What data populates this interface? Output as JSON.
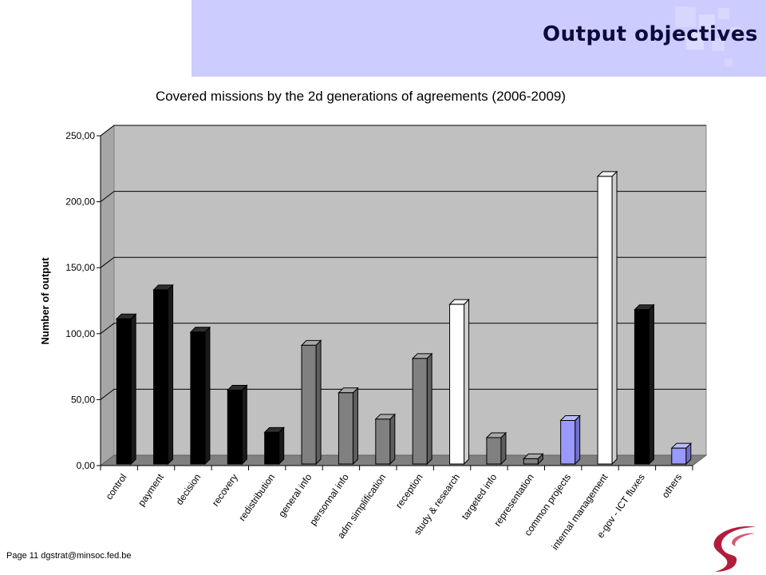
{
  "slide": {
    "title": "Output objectives",
    "footer": "Page 11 dgstrat@minsoc.fed.be"
  },
  "colors": {
    "header_band": "#ccccff",
    "plot_wall": "#c0c0c0",
    "plot_floor": "#808080",
    "bar_black": "#000000",
    "bar_gray": "#808080",
    "bar_white": "#ffffff",
    "bar_blue": "#9999ff",
    "logo_red": "#b01e3c"
  },
  "chart_data": {
    "type": "bar",
    "title": "Covered missions by the 2d generations of agreements (2006-2009)",
    "xlabel": "",
    "ylabel": "Number of output",
    "ylim": [
      0,
      250
    ],
    "yticks": [
      "0,00",
      "50,00",
      "100,00",
      "150,00",
      "200,00",
      "250,00"
    ],
    "ytick_values": [
      0,
      50,
      100,
      150,
      200,
      250
    ],
    "grid": true,
    "legend": "none",
    "style": "3d-column",
    "categories": [
      "control",
      "payment",
      "decision",
      "recovery",
      "redistribution",
      "general info",
      "personnal info",
      "adm simplification",
      "reception",
      "study & research",
      "targeted info",
      "representation",
      "common projects",
      "internal management",
      "e-gov - ICT fluxes",
      "others"
    ],
    "values": [
      110,
      132,
      100,
      56,
      24,
      90,
      54,
      34,
      80,
      121,
      20,
      4,
      33,
      218,
      117,
      12
    ],
    "bar_colors": [
      "black",
      "black",
      "black",
      "black",
      "black",
      "gray",
      "gray",
      "gray",
      "gray",
      "white",
      "gray",
      "gray",
      "blue",
      "white",
      "black",
      "blue"
    ]
  }
}
